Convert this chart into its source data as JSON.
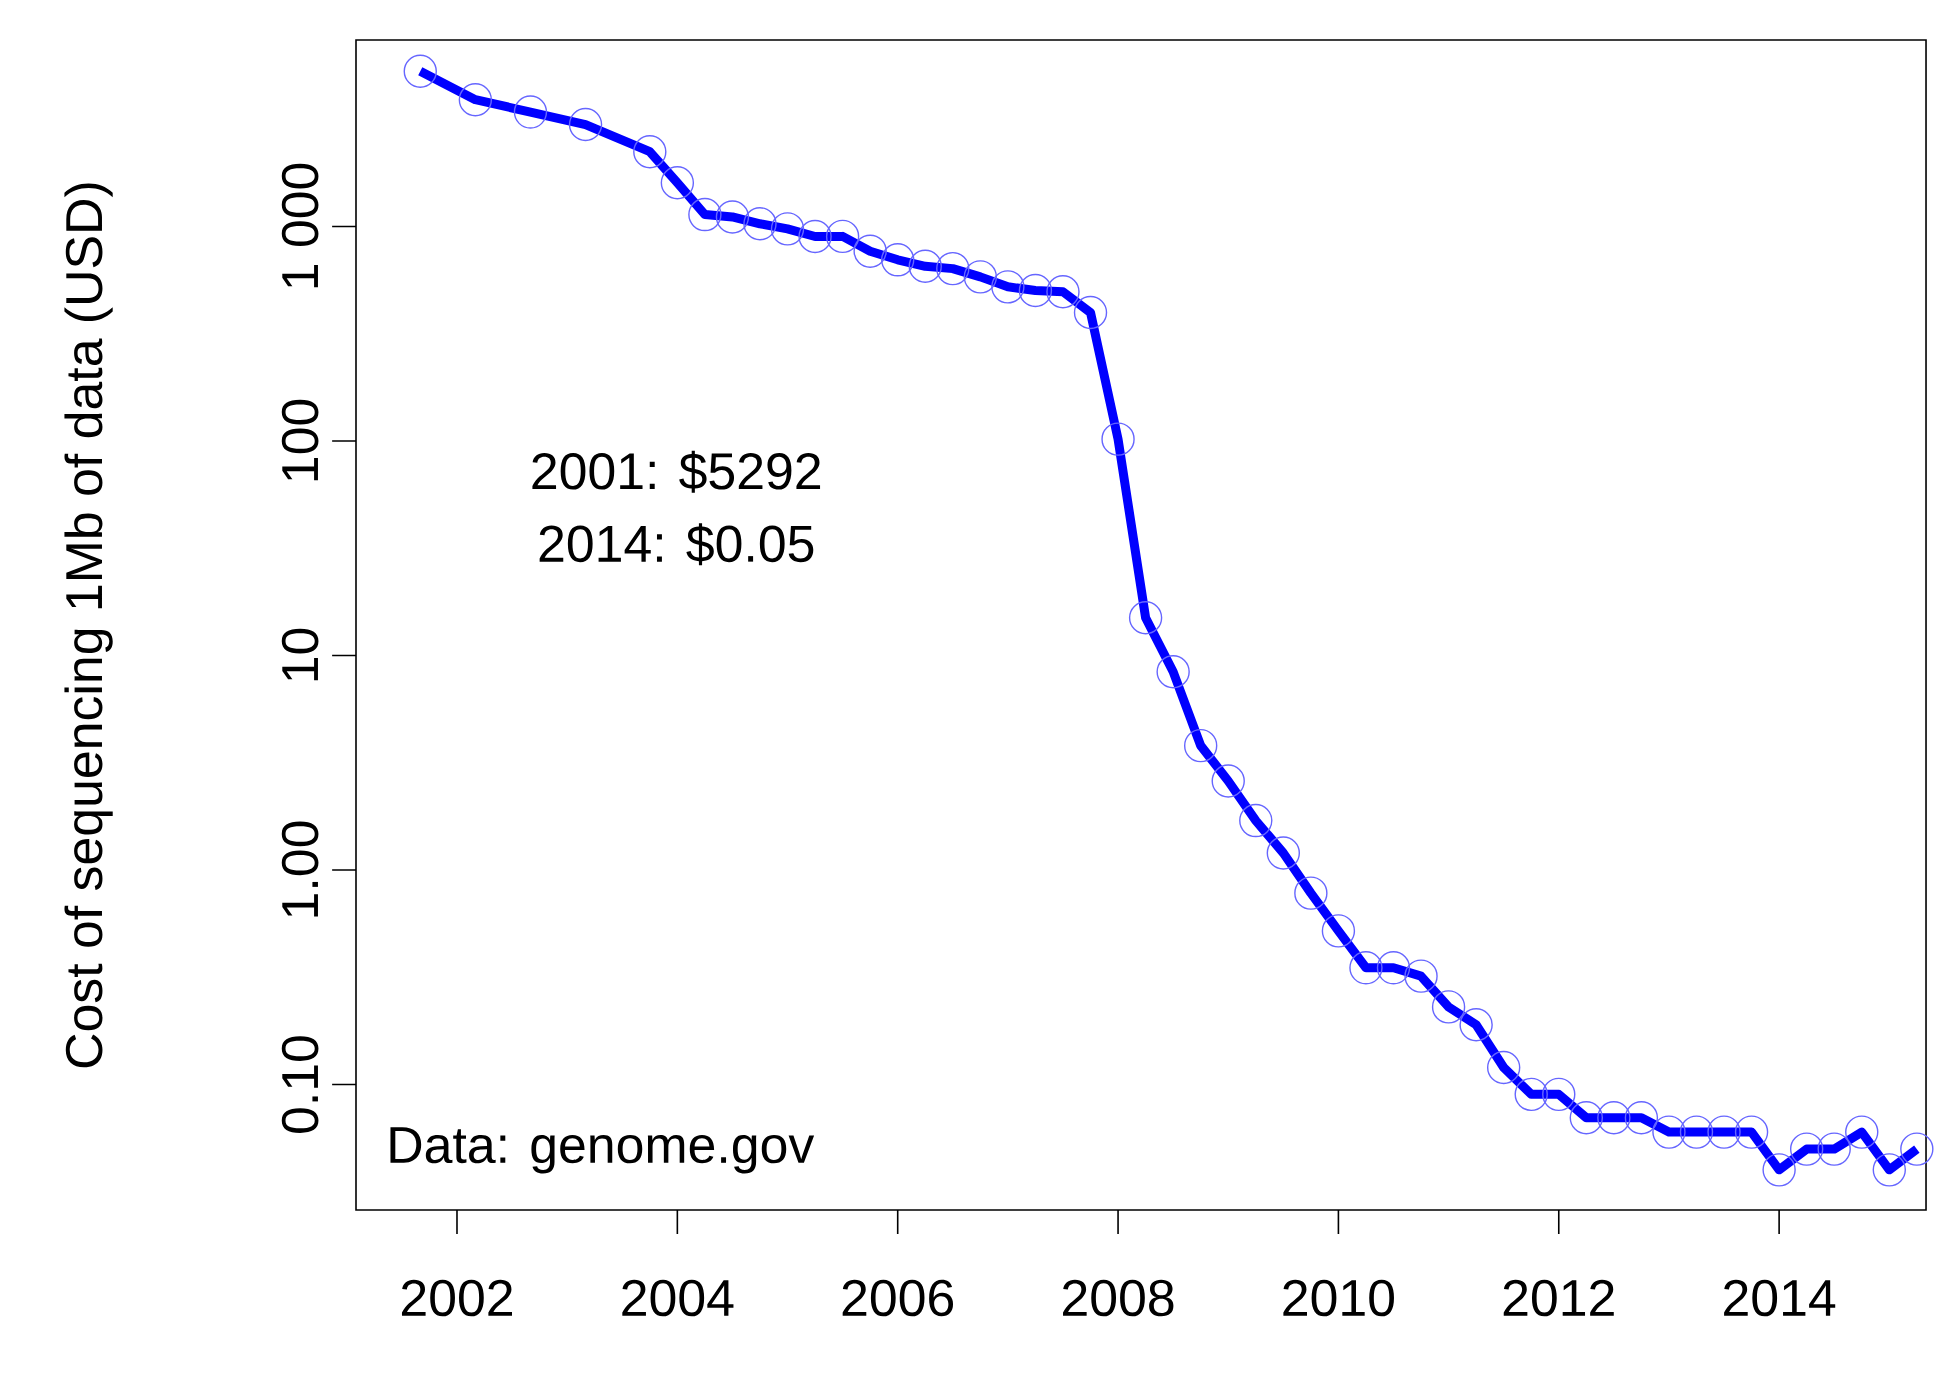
{
  "chart_data": {
    "type": "line",
    "ylabel": "Cost of sequencing 1Mb of data (USD)",
    "annotations": [
      "2001: $5292",
      "2014: $0.05",
      "Data: genome.gov"
    ],
    "x": [
      "2001-09",
      "2002-03",
      "2002-09",
      "2003-03",
      "2003-10",
      "2004-01",
      "2004-04",
      "2004-07",
      "2004-10",
      "2005-01",
      "2005-04",
      "2005-07",
      "2005-10",
      "2006-01",
      "2006-04",
      "2006-07",
      "2006-10",
      "2007-01",
      "2007-04",
      "2007-07",
      "2007-10",
      "2008-01",
      "2008-04",
      "2008-07",
      "2008-10",
      "2009-01",
      "2009-04",
      "2009-07",
      "2009-10",
      "2010-01",
      "2010-04",
      "2010-07",
      "2010-10",
      "2011-01",
      "2011-04",
      "2011-07",
      "2011-10",
      "2012-01",
      "2012-04",
      "2012-07",
      "2012-10",
      "2013-01",
      "2013-04",
      "2013-07",
      "2013-10",
      "2014-01",
      "2014-04",
      "2014-07",
      "2014-10",
      "2015-01",
      "2015-04"
    ],
    "series": [
      {
        "color": "#0000ff",
        "values": [
          5292,
          3899,
          3414,
          2986,
          2231,
          1599,
          1136,
          1107,
          1029,
          974,
          898,
          899,
          767,
          699,
          652,
          636,
          582,
          523,
          503,
          496,
          397,
          102,
          15,
          8.4,
          3.8,
          2.6,
          1.7,
          1.2,
          0.78,
          0.52,
          0.35,
          0.35,
          0.32,
          0.23,
          0.19,
          0.12,
          0.09,
          0.09,
          0.07,
          0.07,
          0.07,
          0.06,
          0.06,
          0.06,
          0.06,
          0.04,
          0.05,
          0.05,
          0.06,
          0.04,
          0.05
        ]
      }
    ],
    "xlim": [
      "2001-02",
      "2015-05"
    ],
    "xticks": [
      {
        "value": "2002",
        "label": "2002"
      },
      {
        "value": "2004",
        "label": "2004"
      },
      {
        "value": "2006",
        "label": "2006"
      },
      {
        "value": "2008",
        "label": "2008"
      },
      {
        "value": "2010",
        "label": "2010"
      },
      {
        "value": "2012",
        "label": "2012"
      },
      {
        "value": "2014",
        "label": "2014"
      }
    ],
    "ylim": [
      0.026,
      7400
    ],
    "yticks": [
      {
        "value": 0.1,
        "label": "0.10"
      },
      {
        "value": 1,
        "label": "1.00"
      },
      {
        "value": 10,
        "label": "10"
      },
      {
        "value": 100,
        "label": "100"
      },
      {
        "value": 1000,
        "label": "1 000"
      }
    ],
    "log": "y",
    "grid": false,
    "marker": "circle",
    "line_style": "solid"
  }
}
